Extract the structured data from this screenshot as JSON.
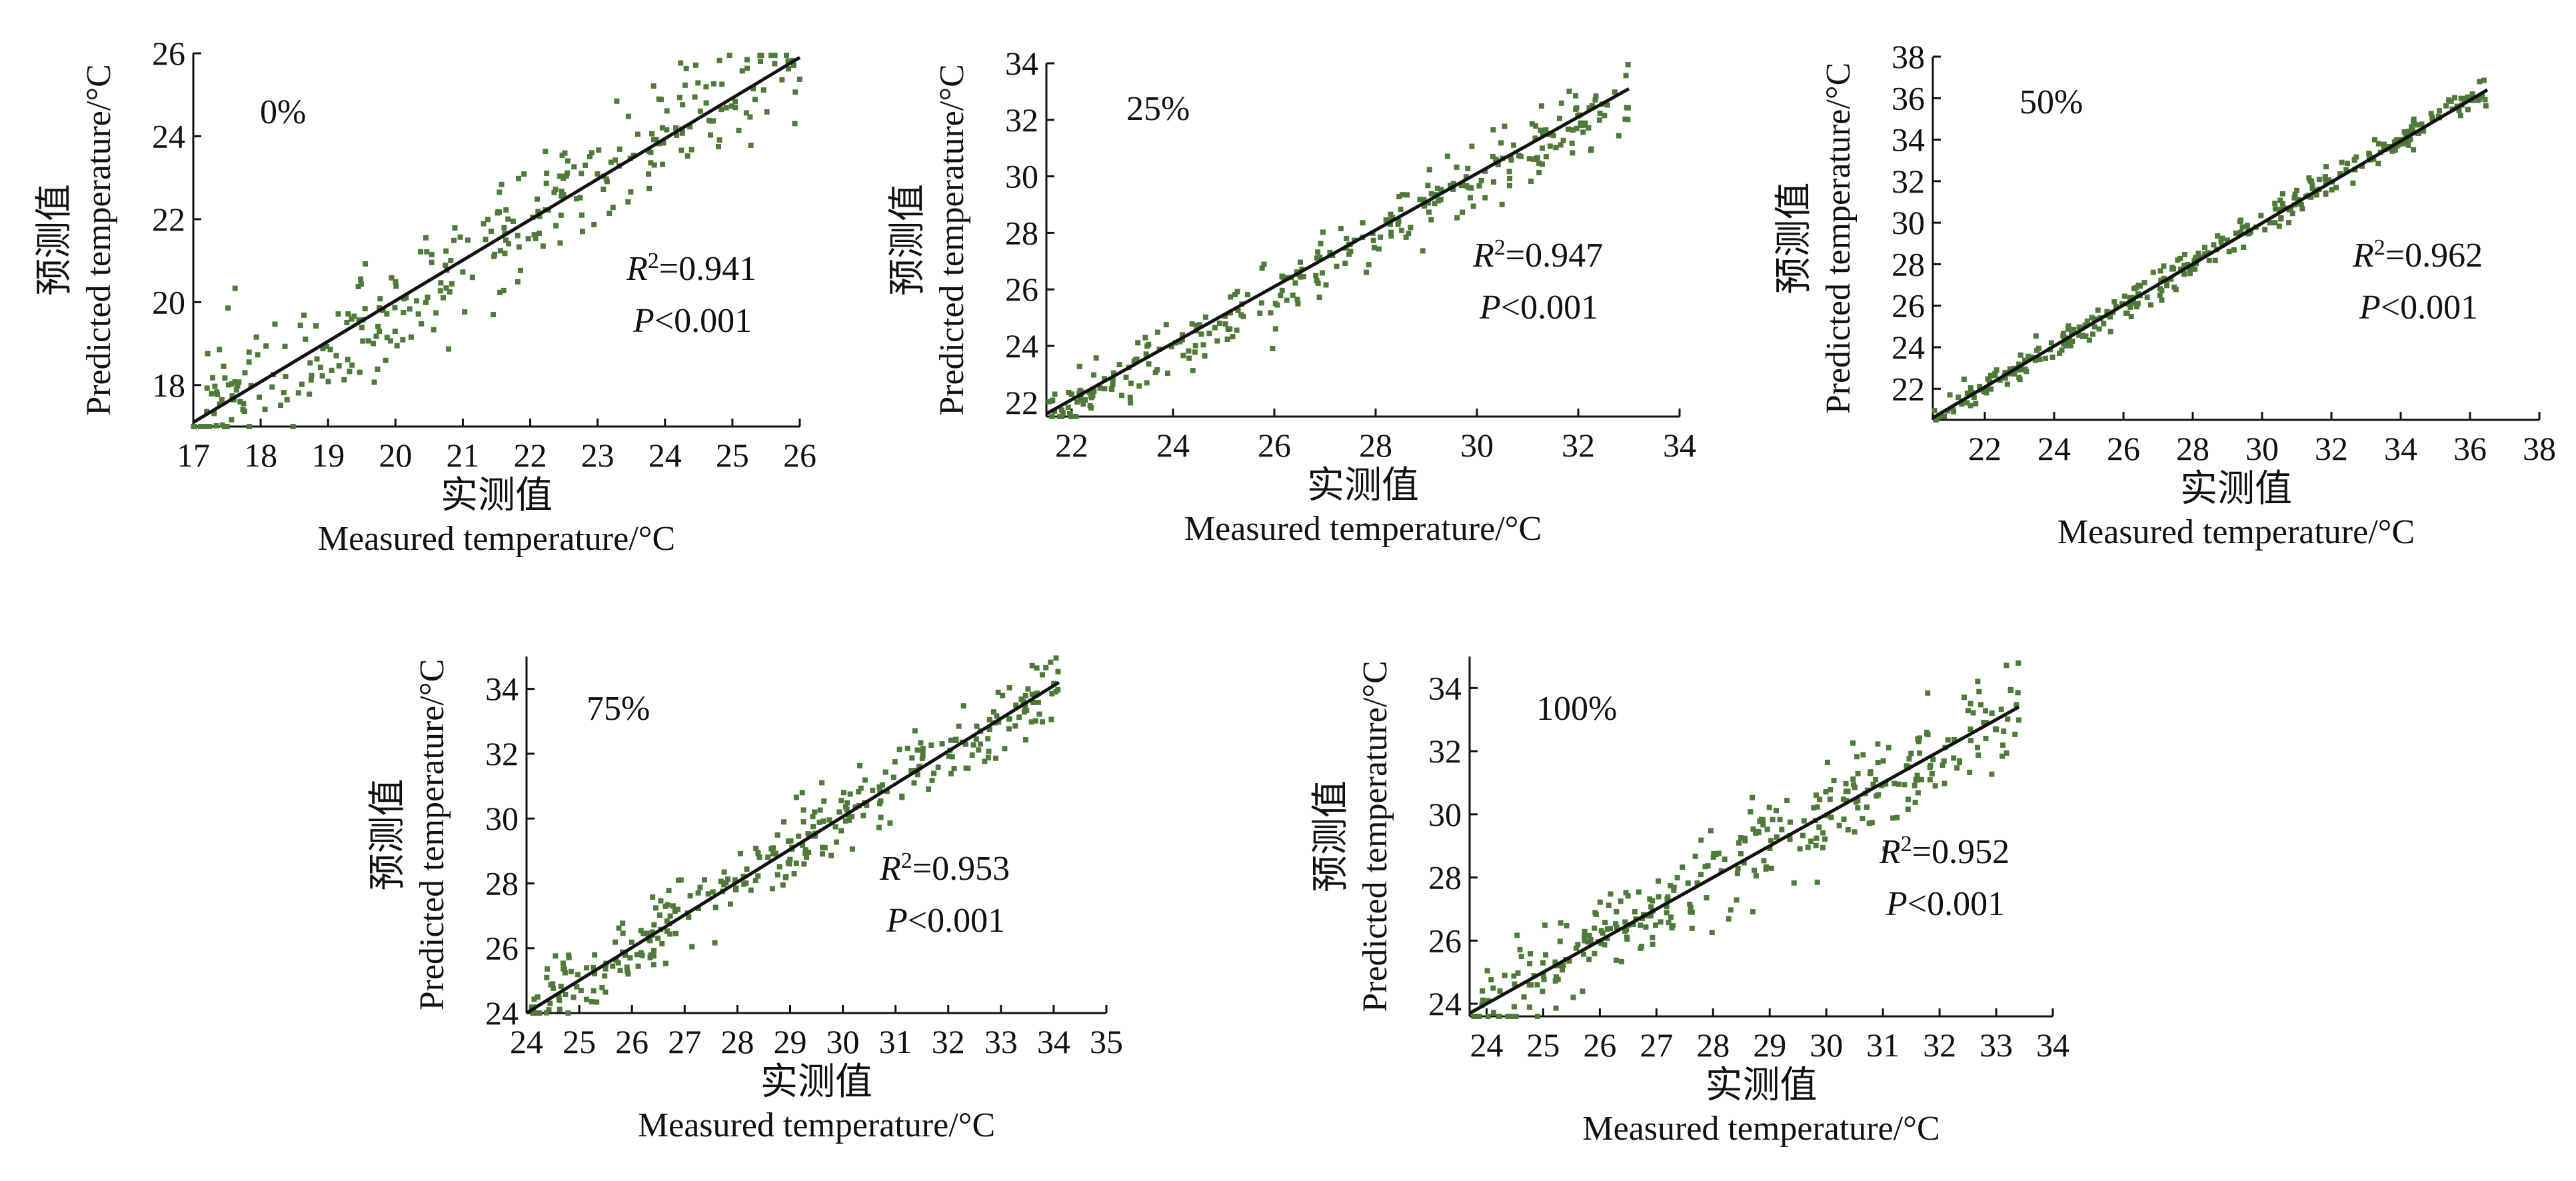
{
  "figure": {
    "point_color": "#4f7a3a",
    "line_color": "#111111"
  },
  "chart_data": [
    {
      "type": "scatter",
      "panel_label": "0%",
      "xlabel_cn": "实测值",
      "xlabel_en": "Measured temperature/°C",
      "ylabel_cn": "预测值",
      "ylabel_en": "Predicted temperature/°C",
      "xlim": [
        17,
        26
      ],
      "ylim": [
        17,
        26
      ],
      "xticks": [
        17,
        18,
        19,
        20,
        21,
        22,
        23,
        24,
        25,
        26
      ],
      "yticks": [
        18,
        20,
        22,
        24,
        26
      ],
      "r2_label": "R",
      "r2_value": "=0.941",
      "p_label": "P",
      "p_value": "<0.001",
      "fit": {
        "x": [
          17,
          26
        ],
        "y": [
          17.1,
          25.9
        ]
      },
      "points_spec": {
        "n": 320,
        "slope": 0.98,
        "intercept": 0.4,
        "noise": 0.75,
        "seed": 11
      }
    },
    {
      "type": "scatter",
      "panel_label": "25%",
      "xlabel_cn": "实测值",
      "xlabel_en": "Measured temperature/°C",
      "ylabel_cn": "预测值",
      "ylabel_en": "Predicted  temperature/°C",
      "xlim": [
        21.5,
        34
      ],
      "ylim": [
        21.5,
        34
      ],
      "xticks": [
        22,
        24,
        26,
        28,
        30,
        32,
        34
      ],
      "yticks": [
        22,
        24,
        26,
        28,
        30,
        32,
        34
      ],
      "r2_label": "R",
      "r2_value": "=0.947",
      "p_label": "P",
      "p_value": "<0.001",
      "fit": {
        "x": [
          21.5,
          33
        ],
        "y": [
          21.6,
          33.1
        ]
      },
      "points_spec": {
        "n": 300,
        "slope": 0.99,
        "intercept": 0.2,
        "noise": 0.55,
        "seed": 23
      }
    },
    {
      "type": "scatter",
      "panel_label": "50%",
      "xlabel_cn": "实测值",
      "xlabel_en": "Measured temperature/°C",
      "ylabel_cn": "预测值",
      "ylabel_en": "Predicted temperature/°C",
      "xlim": [
        20.5,
        38
      ],
      "ylim": [
        20.5,
        38
      ],
      "xticks": [
        22,
        24,
        26,
        28,
        30,
        32,
        34,
        36,
        38
      ],
      "yticks": [
        22,
        24,
        26,
        28,
        30,
        32,
        34,
        36,
        38
      ],
      "r2_label": "R",
      "r2_value": "=0.962",
      "p_label": "P",
      "p_value": "<0.001",
      "fit": {
        "x": [
          20.5,
          36.5
        ],
        "y": [
          20.6,
          36.4
        ]
      },
      "points_spec": {
        "n": 340,
        "slope": 1.0,
        "intercept": 0.0,
        "noise": 0.35,
        "seed": 37
      }
    },
    {
      "type": "scatter",
      "panel_label": "75%",
      "xlabel_cn": "实测值",
      "xlabel_en": "Measured temperature/°C",
      "ylabel_cn": "预测值",
      "ylabel_en": "Predicted  temperature/°C",
      "xlim": [
        24,
        35
      ],
      "ylim": [
        24,
        35
      ],
      "xticks": [
        24,
        25,
        26,
        27,
        28,
        29,
        30,
        31,
        32,
        33,
        34,
        35
      ],
      "yticks": [
        24,
        26,
        28,
        30,
        32,
        34
      ],
      "r2_label": "R",
      "r2_value": "=0.953",
      "p_label": "P",
      "p_value": "<0.001",
      "fit": {
        "x": [
          24,
          34.1
        ],
        "y": [
          24.0,
          34.2
        ]
      },
      "points_spec": {
        "n": 320,
        "slope": 1.0,
        "intercept": 0.0,
        "noise": 0.6,
        "seed": 41
      }
    },
    {
      "type": "scatter",
      "panel_label": "100%",
      "xlabel_cn": "实测值",
      "xlabel_en": "Measured temperature/°C",
      "ylabel_cn": "预测值",
      "ylabel_en": "Predicted temperature/°C",
      "xlim": [
        23.7,
        34
      ],
      "ylim": [
        23.6,
        35
      ],
      "xticks": [
        24,
        25,
        26,
        27,
        28,
        29,
        30,
        31,
        32,
        33,
        34
      ],
      "yticks": [
        24,
        26,
        28,
        30,
        32,
        34
      ],
      "r2_label": "R",
      "r2_value": "=0.952",
      "p_label": "P",
      "p_value": "<0.001",
      "fit": {
        "x": [
          23.7,
          33.4
        ],
        "y": [
          23.7,
          33.4
        ]
      },
      "points_spec": {
        "n": 340,
        "slope": 1.0,
        "intercept": 0.0,
        "noise": 0.75,
        "seed": 53
      }
    }
  ]
}
